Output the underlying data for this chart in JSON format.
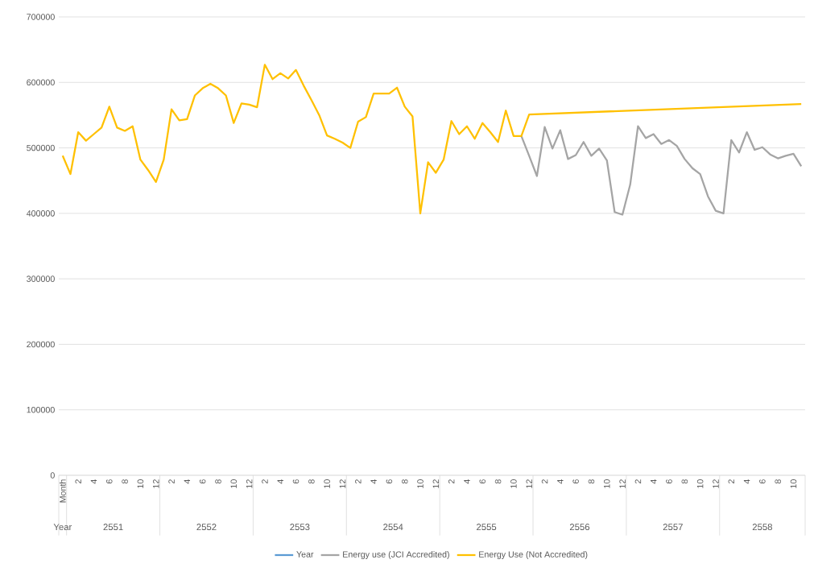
{
  "chart_data": {
    "type": "line",
    "categories": [
      "Month",
      null,
      "2",
      null,
      "4",
      null,
      "6",
      null,
      "8",
      null,
      "10",
      null,
      "12",
      null,
      "2",
      null,
      "4",
      null,
      "6",
      null,
      "8",
      null,
      "10",
      null,
      "12",
      null,
      "2",
      null,
      "4",
      null,
      "6",
      null,
      "8",
      null,
      "10",
      null,
      "12",
      null,
      "2",
      null,
      "4",
      null,
      "6",
      null,
      "8",
      null,
      "10",
      null,
      "12",
      null,
      "2",
      null,
      "4",
      null,
      "6",
      null,
      "8",
      null,
      "10",
      null,
      "12",
      null,
      "2",
      null,
      "4",
      null,
      "6",
      null,
      "8",
      null,
      "10",
      null,
      "12",
      null,
      "2",
      null,
      "4",
      null,
      "6",
      null,
      "8",
      null,
      "10",
      null,
      "12",
      null,
      "2",
      null,
      "4",
      null,
      "6",
      null,
      "8",
      null,
      "10",
      null
    ],
    "series": [
      {
        "name": "Year",
        "color": "#5b9bd5",
        "values": [
          null,
          null,
          null,
          null,
          null,
          null,
          null,
          null,
          null,
          null,
          null,
          null,
          null,
          null,
          null,
          null,
          null,
          null,
          null,
          null,
          null,
          null,
          null,
          null,
          null,
          null,
          null,
          null,
          null,
          null,
          null,
          null,
          null,
          null,
          null,
          null,
          null,
          null,
          null,
          null,
          null,
          null,
          null,
          null,
          null,
          null,
          null,
          null,
          null,
          null,
          null,
          null,
          null,
          null,
          null,
          null,
          null,
          null,
          null,
          null,
          null,
          null,
          null,
          null,
          null,
          null,
          null,
          null,
          null,
          null,
          null,
          null,
          null,
          null,
          null,
          null,
          null,
          null,
          null,
          null,
          null,
          null,
          null,
          null,
          null,
          null,
          null,
          null,
          null,
          null,
          null,
          null,
          null,
          null,
          null,
          null
        ]
      },
      {
        "name": "Energy use (JCI Accredited)",
        "color": "#a5a5a5",
        "values": [
          null,
          null,
          null,
          null,
          null,
          null,
          null,
          null,
          null,
          null,
          null,
          null,
          null,
          null,
          null,
          null,
          null,
          null,
          null,
          null,
          null,
          null,
          null,
          null,
          null,
          null,
          null,
          null,
          null,
          null,
          null,
          null,
          null,
          null,
          null,
          null,
          null,
          null,
          null,
          null,
          null,
          null,
          null,
          null,
          null,
          null,
          null,
          null,
          null,
          null,
          null,
          null,
          null,
          null,
          null,
          null,
          null,
          null,
          null,
          518000,
          488000,
          457000,
          532000,
          499000,
          527000,
          483000,
          489000,
          509000,
          488000,
          499000,
          481000,
          402000,
          398000,
          444000,
          533000,
          515000,
          521000,
          506000,
          512000,
          503000,
          483000,
          469000,
          460000,
          426000,
          404000,
          400000,
          512000,
          493000,
          524000,
          497000,
          501000,
          490000,
          484000,
          488000,
          491000,
          472000
        ]
      },
      {
        "name": "Energy Use (Not Accredited)",
        "color": "#ffc000",
        "values": [
          488000,
          460000,
          524000,
          511000,
          521000,
          531000,
          563000,
          531000,
          526000,
          533000,
          482000,
          466000,
          448000,
          482000,
          559000,
          542000,
          544000,
          580000,
          591000,
          598000,
          591000,
          580000,
          538000,
          568000,
          566000,
          562000,
          627000,
          605000,
          614000,
          606000,
          619000,
          595000,
          573000,
          550000,
          519000,
          514000,
          508000,
          500000,
          540000,
          547000,
          583000,
          583000,
          583000,
          592000,
          563000,
          548000,
          400000,
          478000,
          462000,
          482000,
          541000,
          521000,
          533000,
          514000,
          538000,
          524000,
          509000,
          557000,
          518000,
          518000,
          551000,
          null,
          null,
          null,
          null,
          null,
          null,
          null,
          null,
          null,
          null,
          null,
          null,
          null,
          null,
          null,
          null,
          null,
          null,
          null,
          null,
          null,
          null,
          null,
          null,
          null,
          null,
          null,
          null,
          null,
          null,
          null,
          null,
          null,
          null,
          567000
        ]
      }
    ],
    "ylim": [
      0,
      700000
    ],
    "yticks": [
      0,
      100000,
      200000,
      300000,
      400000,
      500000,
      600000,
      700000
    ],
    "grid": "y",
    "legend": "bottom",
    "marker": "none",
    "annotations": [
      "Year",
      "2551",
      "2552",
      "2553",
      "2554",
      "2555",
      "2556",
      "2557",
      "2558"
    ]
  }
}
